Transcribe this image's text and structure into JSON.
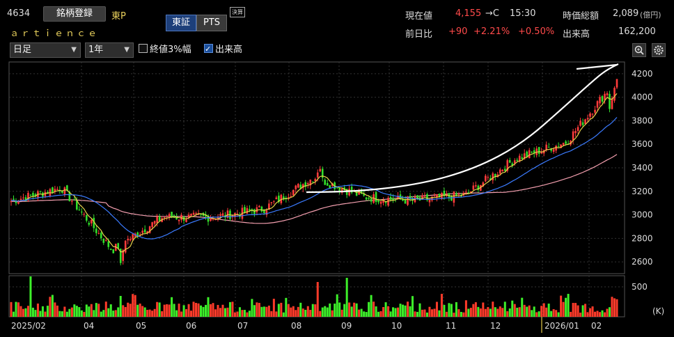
{
  "header": {
    "code": "4634",
    "register_button": "銘柄登録",
    "market": "東P",
    "name": "ａｒｔｉｅｎｃｅ",
    "exchange_tabs": [
      "東証",
      "PTS"
    ],
    "settlement_badge": "決算",
    "price_label": "現在値",
    "price_value": "4,155",
    "price_suffix": "→C",
    "price_time": "15:30",
    "mcap_label": "時価総額",
    "mcap_value": "2,089",
    "mcap_unit": "(億円)",
    "change_label": "前日比",
    "change_value": "+90",
    "change_pct": "+2.21%",
    "change_extra": "+0.50%",
    "volume_label": "出来高",
    "volume_value": "162,200"
  },
  "toolbar": {
    "period_select": "日足",
    "range_select": "1年",
    "check_3pct": "終値3%幅",
    "check_3pct_on": false,
    "check_volume": "出来高",
    "check_volume_on": true,
    "zoom_icon": "magnifier-icon",
    "settings_icon": "gear-icon"
  },
  "colors": {
    "up": "#ff3b3b",
    "down": "#33e02b",
    "ma_short": "#e6d34a",
    "ma_mid": "#3b7bff",
    "ma_long": "#f5a0b0",
    "volume_up": "#ff3b2a",
    "volume_down": "#3df02a",
    "arrow": "#ffffff"
  },
  "chart_data": {
    "type": "candlestick",
    "ylim": [
      2500,
      4300
    ],
    "yticks": [
      2600,
      2800,
      3000,
      3200,
      3400,
      3600,
      3800,
      4000,
      4200
    ],
    "volume_ticks": [
      "500"
    ],
    "volume_unit": "(K)",
    "x_labels": [
      "2025/02",
      "04",
      "05",
      "06",
      "07",
      "08",
      "09",
      "10",
      "11",
      "12",
      "2026/01",
      "02"
    ],
    "series_close": [
      {
        "date": "2025/02",
        "close": 3120
      },
      {
        "date": "2025/03",
        "close": 3230
      },
      {
        "date": "2025/04",
        "close": 2700
      },
      {
        "date": "2025/05",
        "close": 2980
      },
      {
        "date": "2025/06",
        "close": 2980
      },
      {
        "date": "2025/07",
        "close": 3050
      },
      {
        "date": "2025/08",
        "close": 3320
      },
      {
        "date": "2025/09",
        "close": 3150
      },
      {
        "date": "2025/10",
        "close": 3120
      },
      {
        "date": "2025/11",
        "close": 3170
      },
      {
        "date": "2025/12",
        "close": 3480
      },
      {
        "date": "2026/01",
        "close": 3620
      },
      {
        "date": "2026/02",
        "close": 4155
      }
    ],
    "low_point": {
      "date": "2025/04",
      "value": 2530
    },
    "high_point": {
      "date": "2026/02",
      "value": 4190
    },
    "last_close": 4155
  }
}
